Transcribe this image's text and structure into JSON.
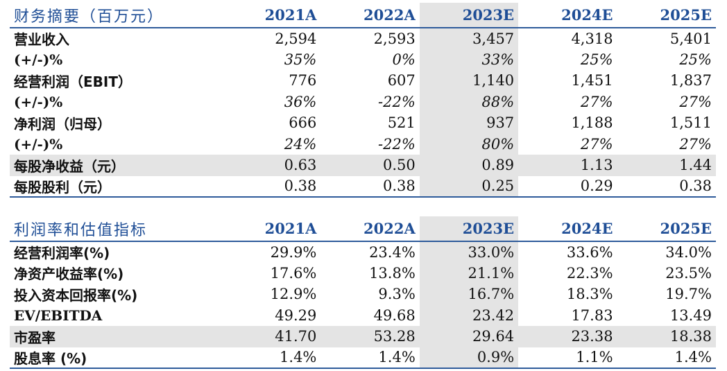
{
  "summary": {
    "title": "财务摘要（百万元）",
    "years": [
      "2021A",
      "2022A",
      "2023E",
      "2024E",
      "2025E"
    ],
    "rows": [
      {
        "label": "营业收入",
        "values": [
          "2,594",
          "2,593",
          "3,457",
          "4,318",
          "5,401"
        ],
        "italic": false,
        "shaded": false,
        "serif": false
      },
      {
        "label": "(+/-)%",
        "values": [
          "35%",
          "0%",
          "33%",
          "25%",
          "25%"
        ],
        "italic": true,
        "shaded": false,
        "serif": true
      },
      {
        "label": "经营利润（EBIT）",
        "values": [
          "776",
          "607",
          "1,140",
          "1,451",
          "1,837"
        ],
        "italic": false,
        "shaded": false,
        "serif": false
      },
      {
        "label": "(+/-)%",
        "values": [
          "36%",
          "-22%",
          "88%",
          "27%",
          "27%"
        ],
        "italic": true,
        "shaded": false,
        "serif": true
      },
      {
        "label": "净利润（归母）",
        "values": [
          "666",
          "521",
          "937",
          "1,188",
          "1,511"
        ],
        "italic": false,
        "shaded": false,
        "serif": false
      },
      {
        "label": "(+/-)%",
        "values": [
          "24%",
          "-22%",
          "80%",
          "27%",
          "27%"
        ],
        "italic": true,
        "shaded": false,
        "serif": true
      },
      {
        "label": "每股净收益（元）",
        "values": [
          "0.63",
          "0.50",
          "0.89",
          "1.13",
          "1.44"
        ],
        "italic": false,
        "shaded": true,
        "serif": false
      },
      {
        "label": "每股股利（元）",
        "values": [
          "0.38",
          "0.38",
          "0.25",
          "0.29",
          "0.38"
        ],
        "italic": false,
        "shaded": false,
        "serif": false
      }
    ]
  },
  "valuation": {
    "title": "利润率和估值指标",
    "years": [
      "2021A",
      "2022A",
      "2023E",
      "2024E",
      "2025E"
    ],
    "rows": [
      {
        "label": "经营利润率(%)",
        "values": [
          "29.9%",
          "23.4%",
          "33.0%",
          "33.6%",
          "34.0%"
        ],
        "italic": false,
        "shaded": false,
        "serif": false
      },
      {
        "label": "净资产收益率(%)",
        "values": [
          "17.6%",
          "13.8%",
          "21.1%",
          "22.3%",
          "23.5%"
        ],
        "italic": false,
        "shaded": false,
        "serif": false
      },
      {
        "label": "投入资本回报率(%)",
        "values": [
          "12.9%",
          "9.3%",
          "16.7%",
          "18.3%",
          "19.7%"
        ],
        "italic": false,
        "shaded": false,
        "serif": false
      },
      {
        "label": "EV/EBITDA",
        "values": [
          "49.29",
          "49.68",
          "23.42",
          "17.83",
          "13.49"
        ],
        "italic": false,
        "shaded": false,
        "serif": true
      },
      {
        "label": "市盈率",
        "values": [
          "41.70",
          "53.28",
          "29.64",
          "23.38",
          "18.38"
        ],
        "italic": false,
        "shaded": true,
        "serif": false
      },
      {
        "label": "股息率 (%)",
        "values": [
          "1.4%",
          "1.4%",
          "0.9%",
          "1.1%",
          "1.4%"
        ],
        "italic": false,
        "shaded": false,
        "serif": false
      }
    ]
  },
  "colors": {
    "header_text": "#1f4e96",
    "rule": "#2d5a9a",
    "highlight": "#e4e4e4"
  }
}
